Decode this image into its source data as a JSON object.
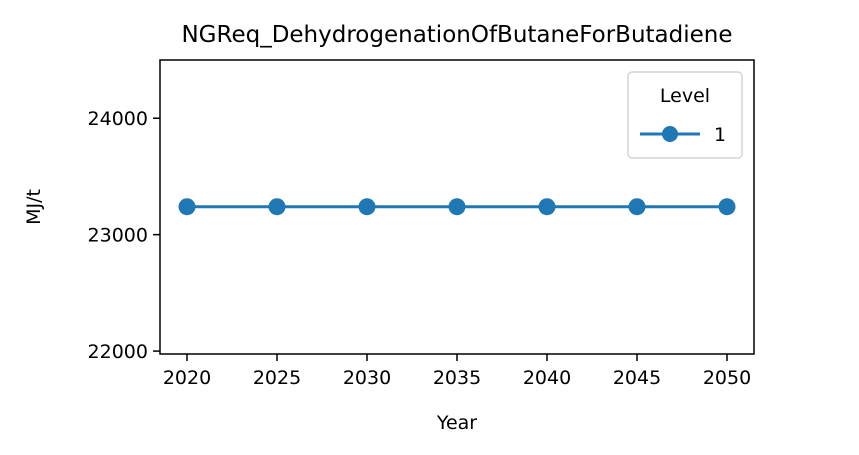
{
  "chart_data": {
    "type": "line",
    "title": "NGReq_DehydrogenationOfButaneForButadiene",
    "xlabel": "Year",
    "ylabel": "MJ/t",
    "x": [
      2020,
      2025,
      2030,
      2035,
      2040,
      2045,
      2050
    ],
    "x_tick_labels": [
      "2020",
      "2025",
      "2030",
      "2035",
      "2040",
      "2045",
      "2050"
    ],
    "y_ticks": [
      22000,
      23000,
      24000
    ],
    "y_tick_labels": [
      "22000",
      "23000",
      "24000"
    ],
    "xlim": [
      2018.5,
      2051.5
    ],
    "ylim": [
      21975,
      24500
    ],
    "grid": false,
    "legend": {
      "title": "Level",
      "placement": "top-right"
    },
    "series": [
      {
        "name": "1",
        "color": "#1f77b4",
        "marker": "circle",
        "values": [
          23240,
          23240,
          23240,
          23240,
          23240,
          23240,
          23240
        ]
      }
    ]
  }
}
